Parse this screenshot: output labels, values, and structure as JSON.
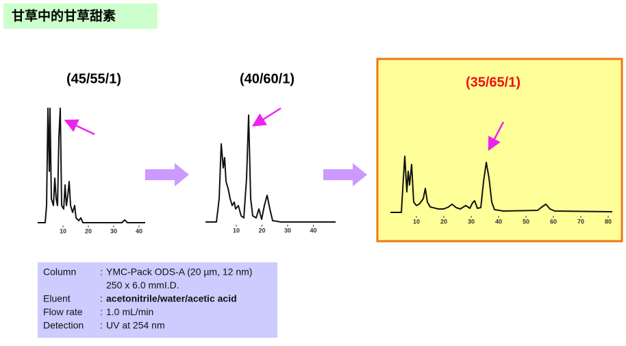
{
  "title": "甘草中的甘草甜素",
  "panels": [
    {
      "label": "(45/55/1)",
      "ticks": [
        "10",
        "20",
        "30",
        "40"
      ]
    },
    {
      "label": "(40/60/1)",
      "ticks": [
        "10",
        "20",
        "30",
        "40"
      ]
    },
    {
      "label": "(35/65/1)",
      "ticks": [
        "10",
        "20",
        "30",
        "40",
        "50",
        "60",
        "70",
        "80"
      ]
    }
  ],
  "conditions": [
    [
      "Column",
      ":",
      "YMC-Pack ODS-A (20 µm, 12 nm)",
      "250 x 6.0 mmI.D."
    ],
    [
      "Eluent",
      ":",
      "acetonitrile/water/acetic acid"
    ],
    [
      "Flow rate",
      ":",
      "1.0 mL/min"
    ],
    [
      "Detection",
      ":",
      "UV at 254 nm"
    ]
  ]
}
